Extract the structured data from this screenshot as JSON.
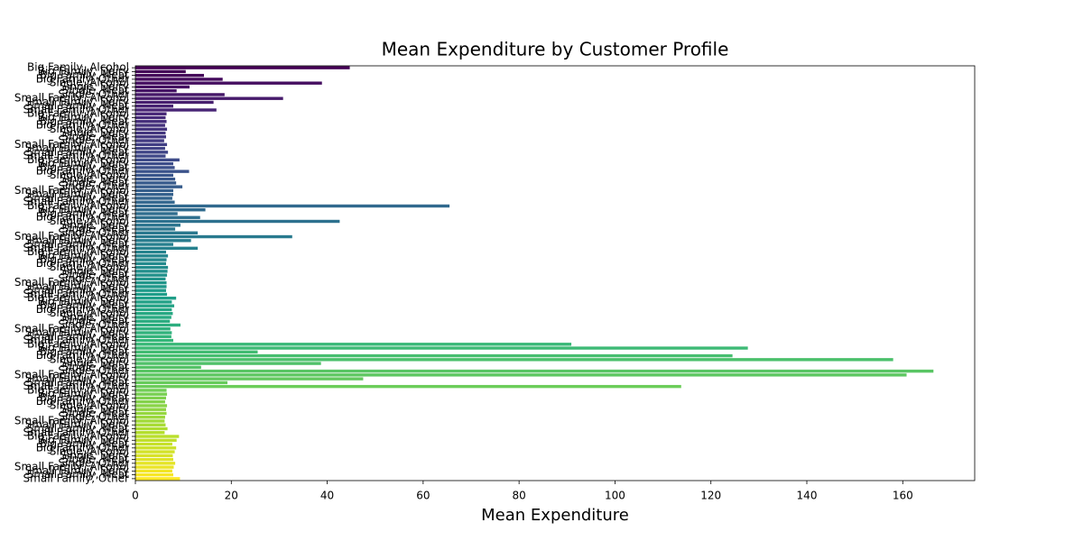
{
  "chart_data": {
    "type": "barh",
    "title": "Mean Expenditure by Customer Profile",
    "xlabel": "Mean Expenditure",
    "palette": "viridis",
    "categories": [
      "Big Family, Alcohol",
      "Big Family, Dairy",
      "Big Family, Meat",
      "Big Family, Other",
      "Single, Alcohol",
      "Single, Dairy",
      "Single, Meat",
      "Single, Other",
      "Small Family, Alcohol",
      "Small Family, Dairy",
      "Small Family, Meat",
      "Small Family, Other",
      "Big Family, Alcohol",
      "Big Family, Dairy",
      "Big Family, Meat",
      "Big Family, Other",
      "Single, Alcohol",
      "Single, Dairy",
      "Single, Meat",
      "Single, Other",
      "Small Family, Alcohol",
      "Small Family, Dairy",
      "Small Family, Meat",
      "Small Family, Other",
      "Big Family, Alcohol",
      "Big Family, Dairy",
      "Big Family, Meat",
      "Big Family, Other",
      "Single, Alcohol",
      "Single, Dairy",
      "Single, Meat",
      "Single, Other",
      "Small Family, Alcohol",
      "Small Family, Dairy",
      "Small Family, Meat",
      "Small Family, Other",
      "Big Family, Alcohol",
      "Big Family, Dairy",
      "Big Family, Meat",
      "Big Family, Other",
      "Single, Alcohol",
      "Single, Dairy",
      "Single, Meat",
      "Single, Other",
      "Small Family, Alcohol",
      "Small Family, Dairy",
      "Small Family, Meat",
      "Small Family, Other",
      "Big Family, Alcohol",
      "Big Family, Dairy",
      "Big Family, Meat",
      "Big Family, Other",
      "Single, Alcohol",
      "Single, Dairy",
      "Single, Meat",
      "Single, Other",
      "Small Family, Alcohol",
      "Small Family, Dairy",
      "Small Family, Meat",
      "Small Family, Other",
      "Big Family, Alcohol",
      "Big Family, Dairy",
      "Big Family, Meat",
      "Big Family, Other",
      "Single, Alcohol",
      "Single, Dairy",
      "Single, Meat",
      "Single, Other",
      "Small Family, Alcohol",
      "Small Family, Dairy",
      "Small Family, Meat",
      "Small Family, Other",
      "Big Family, Alcohol",
      "Big Family, Dairy",
      "Big Family, Meat",
      "Big Family, Other",
      "Single, Alcohol",
      "Single, Dairy",
      "Single, Meat",
      "Single, Other",
      "Small Family, Alcohol",
      "Small Family, Dairy",
      "Small Family, Meat",
      "Small Family, Other",
      "Big Family, Alcohol",
      "Big Family, Dairy",
      "Big Family, Meat",
      "Big Family, Other",
      "Single, Alcohol",
      "Single, Dairy",
      "Single, Meat",
      "Single, Other",
      "Small Family, Alcohol",
      "Small Family, Dairy",
      "Small Family, Meat",
      "Small Family, Other",
      "Big Family, Alcohol",
      "Big Family, Dairy",
      "Big Family, Meat",
      "Big Family, Other",
      "Single, Alcohol",
      "Single, Dairy",
      "Single, Meat",
      "Single, Other",
      "Small Family, Alcohol",
      "Small Family, Dairy",
      "Small Family, Meat",
      "Small Family, Other"
    ],
    "values": [
      44.7,
      10.5,
      14.3,
      18.2,
      38.9,
      11.3,
      8.6,
      18.6,
      30.8,
      16.3,
      7.9,
      16.9,
      6.5,
      6.3,
      6.5,
      6.2,
      6.6,
      6.3,
      6.4,
      6.0,
      6.6,
      6.2,
      6.8,
      6.3,
      9.2,
      7.9,
      8.2,
      11.2,
      7.9,
      8.3,
      8.5,
      9.8,
      7.9,
      7.9,
      7.7,
      8.2,
      65.5,
      14.6,
      8.8,
      13.5,
      42.6,
      9.4,
      8.3,
      13.0,
      32.7,
      11.6,
      7.9,
      13.0,
      6.4,
      6.8,
      6.5,
      6.4,
      6.8,
      6.7,
      6.6,
      6.3,
      6.5,
      6.5,
      6.4,
      6.6,
      8.5,
      7.6,
      8.1,
      7.6,
      7.8,
      7.5,
      7.2,
      9.4,
      7.3,
      7.6,
      7.5,
      7.9,
      90.9,
      127.7,
      25.5,
      124.5,
      158.0,
      38.7,
      13.7,
      166.4,
      160.8,
      47.5,
      19.2,
      113.8,
      6.5,
      6.6,
      6.4,
      6.2,
      6.6,
      6.4,
      6.5,
      6.2,
      6.1,
      6.3,
      6.7,
      6.1,
      9.1,
      8.6,
      7.7,
      8.5,
      8.2,
      7.8,
      7.9,
      8.3,
      8.0,
      7.7,
      7.9,
      9.3
    ],
    "xlim": [
      0,
      175
    ],
    "xticks": [
      0,
      20,
      40,
      60,
      80,
      100,
      120,
      140,
      160
    ]
  }
}
